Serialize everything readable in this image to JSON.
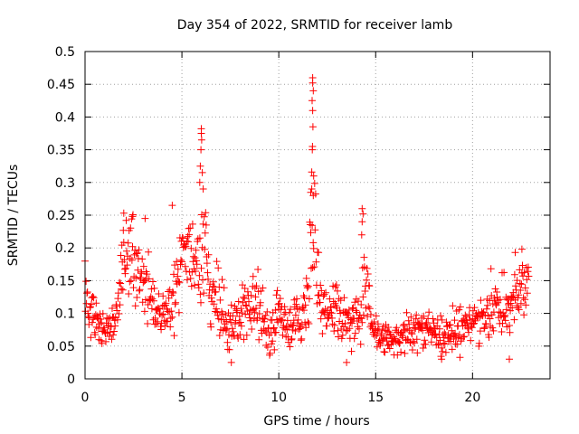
{
  "chart_data": {
    "type": "scatter",
    "title": "Day 354 of 2022, SRMTID for receiver lamb",
    "xlabel": "GPS time / hours",
    "ylabel": "SRMTID / TECUs",
    "xlim": [
      0,
      24
    ],
    "ylim": [
      0,
      0.5
    ],
    "x_ticks": [
      0,
      5,
      10,
      15,
      20
    ],
    "x_tick_labels": [
      "0",
      "5",
      "10",
      "15",
      "20"
    ],
    "y_ticks": [
      0,
      0.05,
      0.1,
      0.15,
      0.2,
      0.25,
      0.3,
      0.35,
      0.4,
      0.45,
      0.5
    ],
    "y_tick_labels": [
      "0",
      "0.05",
      "0.1",
      "0.15",
      "0.2",
      "0.25",
      "0.3",
      "0.35",
      "0.4",
      "0.45",
      "0.5"
    ],
    "grid": true,
    "marker": "plus",
    "color": "#ff0000",
    "series": [
      {
        "name": "SRMTID",
        "profile": {
          "x": [
            0.0,
            0.1,
            0.3,
            0.6,
            0.9,
            1.2,
            1.5,
            1.8,
            2.0,
            2.3,
            2.6,
            2.9,
            3.2,
            3.5,
            3.8,
            4.1,
            4.4,
            4.7,
            5.0,
            5.3,
            5.6,
            5.9,
            6.1,
            6.4,
            6.7,
            7.0,
            7.3,
            7.6,
            7.9,
            8.2,
            8.5,
            8.8,
            9.1,
            9.4,
            9.7,
            10.0,
            10.3,
            10.6,
            10.9,
            11.2,
            11.5,
            11.7,
            11.8,
            11.9,
            12.1,
            12.4,
            12.7,
            13.0,
            13.3,
            13.6,
            13.9,
            14.2,
            14.4,
            14.6,
            14.9,
            15.2,
            15.5,
            15.8,
            16.1,
            16.4,
            16.7,
            17.0,
            17.3,
            17.6,
            17.9,
            18.2,
            18.5,
            18.8,
            19.1,
            19.4,
            19.7,
            20.0,
            20.3,
            20.6,
            20.9,
            21.2,
            21.5,
            21.8,
            22.1,
            22.4,
            22.7,
            22.9
          ],
          "median": [
            0.16,
            0.12,
            0.1,
            0.09,
            0.08,
            0.075,
            0.09,
            0.13,
            0.18,
            0.19,
            0.17,
            0.18,
            0.15,
            0.12,
            0.1,
            0.09,
            0.11,
            0.14,
            0.19,
            0.2,
            0.17,
            0.18,
            0.22,
            0.16,
            0.13,
            0.11,
            0.09,
            0.08,
            0.09,
            0.1,
            0.11,
            0.12,
            0.1,
            0.085,
            0.08,
            0.09,
            0.08,
            0.085,
            0.1,
            0.075,
            0.12,
            0.25,
            0.3,
            0.18,
            0.1,
            0.09,
            0.1,
            0.12,
            0.09,
            0.085,
            0.08,
            0.1,
            0.15,
            0.1,
            0.075,
            0.07,
            0.065,
            0.06,
            0.06,
            0.065,
            0.07,
            0.075,
            0.08,
            0.07,
            0.075,
            0.065,
            0.06,
            0.065,
            0.075,
            0.08,
            0.085,
            0.09,
            0.095,
            0.1,
            0.11,
            0.11,
            0.1,
            0.11,
            0.12,
            0.13,
            0.14,
            0.15
          ],
          "spread": [
            0.03,
            0.04,
            0.03,
            0.03,
            0.025,
            0.02,
            0.03,
            0.04,
            0.05,
            0.05,
            0.05,
            0.05,
            0.05,
            0.04,
            0.03,
            0.035,
            0.04,
            0.05,
            0.05,
            0.05,
            0.05,
            0.06,
            0.08,
            0.06,
            0.05,
            0.04,
            0.035,
            0.035,
            0.035,
            0.04,
            0.04,
            0.04,
            0.04,
            0.035,
            0.035,
            0.035,
            0.03,
            0.03,
            0.03,
            0.03,
            0.05,
            0.12,
            0.14,
            0.09,
            0.04,
            0.035,
            0.035,
            0.04,
            0.035,
            0.03,
            0.03,
            0.05,
            0.08,
            0.05,
            0.025,
            0.02,
            0.02,
            0.02,
            0.02,
            0.02,
            0.025,
            0.025,
            0.025,
            0.025,
            0.025,
            0.025,
            0.025,
            0.025,
            0.03,
            0.03,
            0.03,
            0.03,
            0.035,
            0.035,
            0.04,
            0.04,
            0.04,
            0.04,
            0.04,
            0.04,
            0.045,
            0.05
          ]
        },
        "points_per_hour": 40,
        "highlight_points": [
          {
            "x": 11.75,
            "y": 0.46
          },
          {
            "x": 11.75,
            "y": 0.452
          },
          {
            "x": 11.78,
            "y": 0.44
          },
          {
            "x": 11.72,
            "y": 0.425
          },
          {
            "x": 11.75,
            "y": 0.41
          },
          {
            "x": 11.76,
            "y": 0.385
          },
          {
            "x": 11.74,
            "y": 0.355
          },
          {
            "x": 11.73,
            "y": 0.35
          },
          {
            "x": 11.8,
            "y": 0.31
          },
          {
            "x": 11.7,
            "y": 0.29
          },
          {
            "x": 11.65,
            "y": 0.285
          },
          {
            "x": 11.78,
            "y": 0.28
          },
          {
            "x": 6.0,
            "y": 0.382
          },
          {
            "x": 6.0,
            "y": 0.375
          },
          {
            "x": 6.02,
            "y": 0.365
          },
          {
            "x": 5.98,
            "y": 0.35
          },
          {
            "x": 5.95,
            "y": 0.325
          },
          {
            "x": 6.05,
            "y": 0.315
          },
          {
            "x": 5.92,
            "y": 0.3
          },
          {
            "x": 6.1,
            "y": 0.29
          },
          {
            "x": 14.3,
            "y": 0.26
          },
          {
            "x": 14.35,
            "y": 0.252
          },
          {
            "x": 14.3,
            "y": 0.24
          },
          {
            "x": 14.28,
            "y": 0.22
          },
          {
            "x": 2.0,
            "y": 0.253
          },
          {
            "x": 2.45,
            "y": 0.248
          },
          {
            "x": 3.1,
            "y": 0.245
          },
          {
            "x": 4.5,
            "y": 0.265
          },
          {
            "x": 22.55,
            "y": 0.198
          },
          {
            "x": 22.2,
            "y": 0.193
          },
          {
            "x": 13.5,
            "y": 0.025
          },
          {
            "x": 7.55,
            "y": 0.025
          },
          {
            "x": 21.9,
            "y": 0.03
          },
          {
            "x": 18.4,
            "y": 0.03
          }
        ]
      }
    ]
  }
}
